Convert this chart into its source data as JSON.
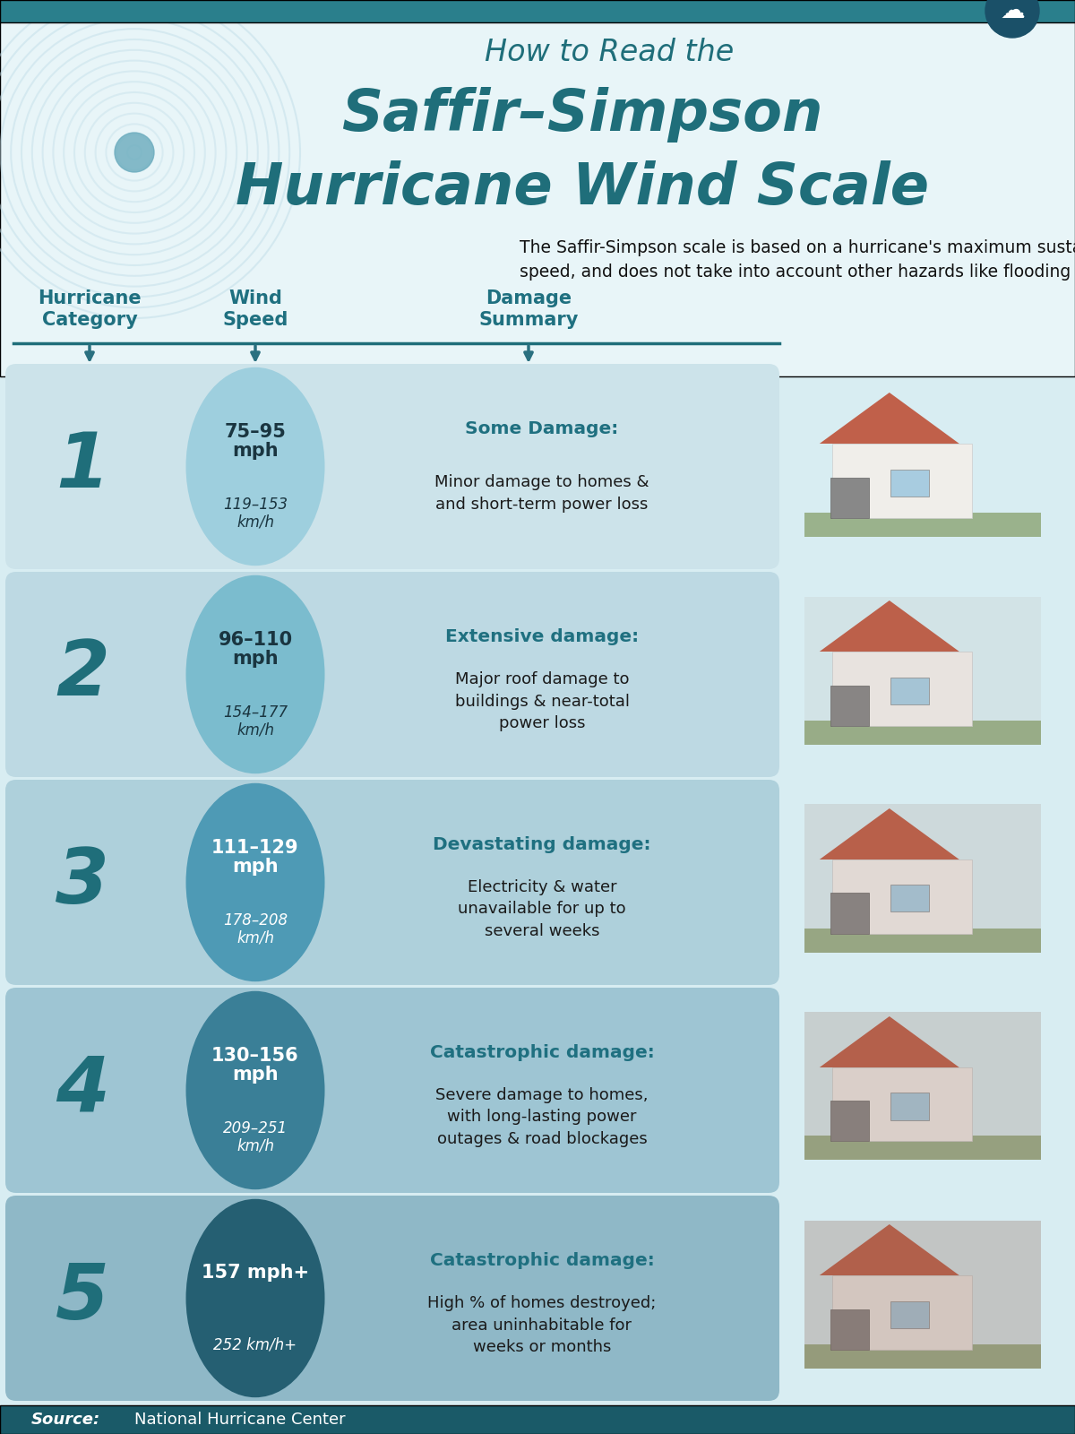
{
  "title_line1": "How to Read the",
  "title_line2": "Saffir–Simpson",
  "title_line3": "Hurricane Wind Scale",
  "subtitle": "The Saffir-Simpson scale is based on a hurricane's maximum sustained wind\nspeed, and does not take into account other hazards like flooding and tornadoes.",
  "col_headers": [
    "Hurricane\nCategory",
    "Wind\nSpeed",
    "Damage\nSummary"
  ],
  "bg_color": "#d8edf2",
  "title_bg_color": "#e8f5f8",
  "teal_dark": "#1f6e7a",
  "teal_header": "#1f7080",
  "footer_bg": "#1a5a68",
  "categories": [
    {
      "num": "1",
      "speed_mph": "75–95\nmph",
      "speed_kmh": "119–153\nkm/h",
      "damage_title": "Some Damage:",
      "damage_desc": "Minor damage to homes &\nand short-term power loss",
      "circle_color": "#9ecfde",
      "num_color": "#1f6e7a",
      "row_color": "#cce3ea",
      "text_color_circle": "#1a3540"
    },
    {
      "num": "2",
      "speed_mph": "96–110\nmph",
      "speed_kmh": "154–177\nkm/h",
      "damage_title": "Extensive damage:",
      "damage_desc": "Major roof damage to\nbuildings & near-total\npower loss",
      "circle_color": "#7bbcce",
      "num_color": "#1f6e7a",
      "row_color": "#bdd9e3",
      "text_color_circle": "#1a3540"
    },
    {
      "num": "3",
      "speed_mph": "111–129\nmph",
      "speed_kmh": "178–208\nkm/h",
      "damage_title": "Devastating damage:",
      "damage_desc": "Electricity & water\nunavailable for up to\nseveral weeks",
      "circle_color": "#4e9ab5",
      "num_color": "#1f6e7a",
      "row_color": "#aed0db",
      "text_color_circle": "#ffffff"
    },
    {
      "num": "4",
      "speed_mph": "130–156\nmph",
      "speed_kmh": "209–251\nkm/h",
      "damage_title": "Catastrophic damage:",
      "damage_desc": "Severe damage to homes,\nwith long-lasting power\noutages & road blockages",
      "circle_color": "#3a7f97",
      "num_color": "#1f6e7a",
      "row_color": "#9ec5d3",
      "text_color_circle": "#ffffff"
    },
    {
      "num": "5",
      "speed_mph": "157 mph+",
      "speed_kmh": "252 km/h+",
      "damage_title": "Catastrophic damage:",
      "damage_desc": "High % of homes destroyed;\narea uninhabitable for\nweeks or months",
      "circle_color": "#255f72",
      "num_color": "#1f6e7a",
      "row_color": "#8fb8c7",
      "text_color_circle": "#ffffff"
    }
  ],
  "source_italic": "Source:",
  "source_normal": "National Hurricane Center",
  "top_bar_color": "#2a7f8c",
  "arrow_color": "#2a7080",
  "spiral_color": "#c0dde8",
  "spiral_center": "#6aabbd"
}
